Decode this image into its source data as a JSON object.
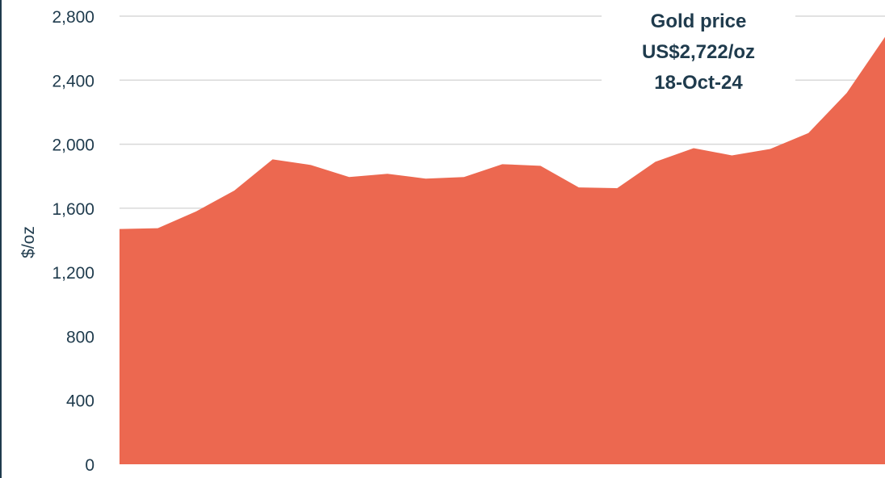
{
  "colors": {
    "area": "#ec6850",
    "grid": "#d9d9d9",
    "text": "#1f3b4d",
    "border": "#1f3b4d"
  },
  "annotation": {
    "line1": "Gold price",
    "line2": "US$2,722/oz",
    "line3": "18-Oct-24"
  },
  "chart_data": {
    "type": "area",
    "title": "",
    "xlabel": "",
    "ylabel": "$/oz",
    "ylim": [
      0,
      2800
    ],
    "yticks": [
      0,
      400,
      800,
      1200,
      1600,
      2000,
      2400,
      2800
    ],
    "ytick_labels": [
      "0",
      "400",
      "800",
      "1,200",
      "1,600",
      "2,000",
      "2,400",
      "2,800"
    ],
    "grid": true,
    "legend": "none",
    "series": [
      {
        "values": [
          1470,
          1475,
          1580,
          1710,
          1905,
          1870,
          1795,
          1815,
          1785,
          1795,
          1875,
          1865,
          1730,
          1725,
          1890,
          1975,
          1930,
          1970,
          2070,
          2320,
          2670
        ]
      }
    ]
  }
}
